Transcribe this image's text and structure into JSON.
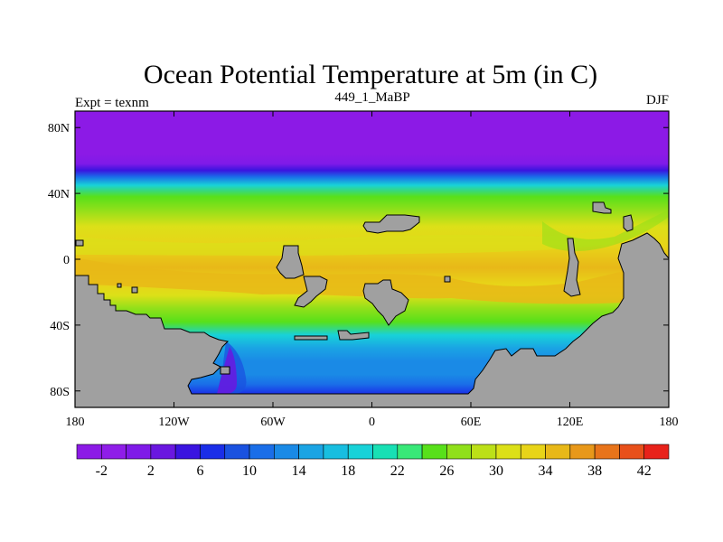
{
  "chart_data": {
    "type": "heatmap",
    "title": "Ocean Potential Temperature at 5m (in C)",
    "subtitle_left": "Expt = texnm",
    "subtitle_center": "449_1_MaBP",
    "subtitle_right": "DJF",
    "x_range": [
      -180,
      180
    ],
    "y_range": [
      -90,
      90
    ],
    "x_ticks": [
      {
        "value": -180,
        "label": "180"
      },
      {
        "value": -120,
        "label": "120W"
      },
      {
        "value": -60,
        "label": "60W"
      },
      {
        "value": 0,
        "label": "0"
      },
      {
        "value": 60,
        "label": "60E"
      },
      {
        "value": 120,
        "label": "120E"
      },
      {
        "value": 180,
        "label": "180"
      }
    ],
    "y_ticks": [
      {
        "value": 80,
        "label": "80N"
      },
      {
        "value": 40,
        "label": "40N"
      },
      {
        "value": 0,
        "label": "0"
      },
      {
        "value": -40,
        "label": "40S"
      },
      {
        "value": -80,
        "label": "80S"
      }
    ],
    "colorbar": {
      "min": -4,
      "max": 44,
      "step": 2,
      "colors": [
        "#8c1ae6",
        "#8f1ee8",
        "#7f1ae8",
        "#6a17e0",
        "#3a14e0",
        "#1a2ee8",
        "#1a52e0",
        "#1a6ee8",
        "#1a8ae6",
        "#1aa4e4",
        "#18bee0",
        "#18d2d8",
        "#18e0b4",
        "#38e878",
        "#58e01a",
        "#90e01a",
        "#bce018",
        "#dce018",
        "#e8d418",
        "#e8b818",
        "#e8981a",
        "#e8741a",
        "#e8501a",
        "#e8221a"
      ],
      "tick_labels": [
        {
          "value": -2,
          "label": "-2"
        },
        {
          "value": 2,
          "label": "2"
        },
        {
          "value": 6,
          "label": "6"
        },
        {
          "value": 10,
          "label": "10"
        },
        {
          "value": 14,
          "label": "14"
        },
        {
          "value": 18,
          "label": "18"
        },
        {
          "value": 22,
          "label": "22"
        },
        {
          "value": 26,
          "label": "26"
        },
        {
          "value": 30,
          "label": "30"
        },
        {
          "value": 34,
          "label": "34"
        },
        {
          "value": 38,
          "label": "38"
        },
        {
          "value": 42,
          "label": "42"
        }
      ]
    },
    "temperature_profile": [
      {
        "lat": 90,
        "t": -3
      },
      {
        "lat": 64,
        "t": -3
      },
      {
        "lat": 58,
        "t": 0
      },
      {
        "lat": 54,
        "t": 4
      },
      {
        "lat": 50,
        "t": 10
      },
      {
        "lat": 45,
        "t": 18
      },
      {
        "lat": 38,
        "t": 24
      },
      {
        "lat": 30,
        "t": 27
      },
      {
        "lat": 20,
        "t": 30
      },
      {
        "lat": 8,
        "t": 32
      },
      {
        "lat": -5,
        "t": 34
      },
      {
        "lat": -15,
        "t": 33
      },
      {
        "lat": -22,
        "t": 31
      },
      {
        "lat": -30,
        "t": 27
      },
      {
        "lat": -38,
        "t": 24
      },
      {
        "lat": -46,
        "t": 19
      },
      {
        "lat": -54,
        "t": 15
      },
      {
        "lat": -62,
        "t": 13
      },
      {
        "lat": -70,
        "t": 12
      },
      {
        "lat": -76,
        "t": 10
      },
      {
        "lat": -82,
        "t": 6
      },
      {
        "lat": -86,
        "t": 4
      }
    ],
    "land_color": "#a0a0a0",
    "land_outline_color": "#000000"
  }
}
